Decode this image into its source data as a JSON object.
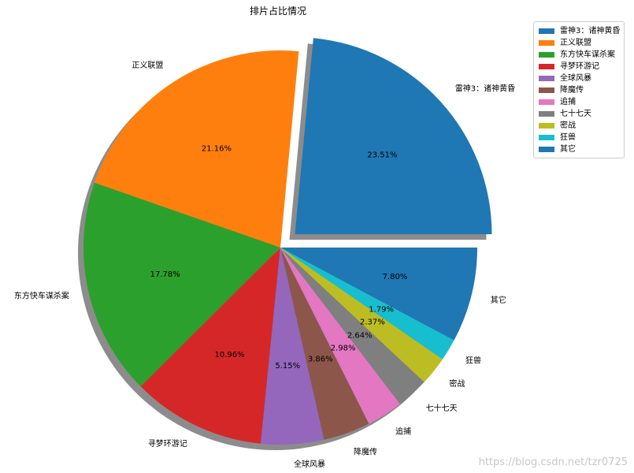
{
  "chart_data": {
    "type": "pie",
    "title": "排片占比情况",
    "categories": [
      "雷神3：诸神黄昏",
      "正义联盟",
      "东方快车谋杀案",
      "寻梦环游记",
      "全球风暴",
      "降魔传",
      "追捕",
      "七十七天",
      "密战",
      "狂兽",
      "其它"
    ],
    "values": [
      23.51,
      21.16,
      17.78,
      10.96,
      5.15,
      3.86,
      2.98,
      2.64,
      2.37,
      1.79,
      7.8
    ],
    "value_labels": [
      "23.51%",
      "21.16%",
      "17.78%",
      "10.96%",
      "5.15%",
      "3.86%",
      "2.98%",
      "2.64%",
      "2.37%",
      "1.79%",
      "7.80%"
    ],
    "colors": [
      "#1f77b4",
      "#ff7f0e",
      "#2ca02c",
      "#d62728",
      "#9467bd",
      "#8c564b",
      "#e377c2",
      "#7f7f7f",
      "#bcbd22",
      "#17becf",
      "#1f77b4"
    ],
    "exploded": [
      "雷神3：诸神黄昏"
    ],
    "shadow": true,
    "legend": {
      "position": "top-right",
      "entries": [
        "雷神3：诸神黄昏",
        "正义联盟",
        "东方快车谋杀案",
        "寻梦环游记",
        "全球风暴",
        "降魔传",
        "追捕",
        "七十七天",
        "密战",
        "狂兽",
        "其它"
      ]
    }
  },
  "watermark": "https://blog.csdn.net/tzr0725"
}
